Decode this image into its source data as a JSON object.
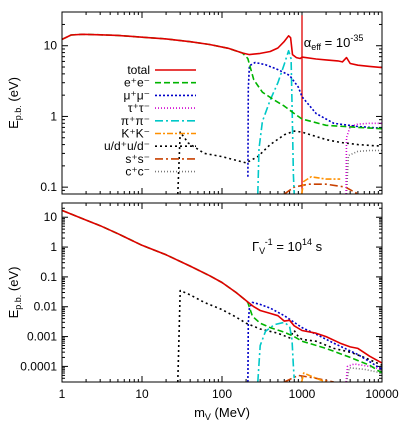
{
  "chart_data": [
    {
      "type": "line",
      "ylabel_main": "E",
      "ylabel_sub": "p.b.",
      "ylabel_unit": " (eV)",
      "xscale": "log",
      "yscale": "log",
      "xlim": [
        1,
        10000
      ],
      "ylim": [
        0.08,
        30
      ],
      "y_ticks": [
        0.1,
        1,
        10
      ],
      "y_tick_labels": [
        "0.1",
        "1",
        "10"
      ],
      "annotation": {
        "alpha": "α",
        "sub": "eff",
        "text": " = 10",
        "sup": "-35",
        "data_x": 1050,
        "data_y": 9.6
      },
      "marker_x": 1000,
      "legend_position": "left-center",
      "series": [
        {
          "name": "total",
          "color": "#e00000",
          "dash": "solid",
          "points": [
            [
              1,
              12.3
            ],
            [
              1.3,
              14.2
            ],
            [
              1.8,
              14.5
            ],
            [
              3,
              14.3
            ],
            [
              5,
              14
            ],
            [
              10,
              13.2
            ],
            [
              20,
              12.5
            ],
            [
              40,
              11.4
            ],
            [
              70,
              10.4
            ],
            [
              120,
              9.2
            ],
            [
              180,
              7.9
            ],
            [
              220,
              7.5
            ],
            [
              300,
              7.8
            ],
            [
              400,
              8.3
            ],
            [
              500,
              9.3
            ],
            [
              600,
              11.5
            ],
            [
              680,
              13.8
            ],
            [
              720,
              13
            ],
            [
              760,
              7.5
            ],
            [
              850,
              6.8
            ],
            [
              950,
              6.6
            ],
            [
              1000,
              6.9
            ],
            [
              1500,
              6.5
            ],
            [
              2000,
              6.3
            ],
            [
              2800,
              6.1
            ],
            [
              3200,
              5.9
            ],
            [
              3600,
              6.8
            ],
            [
              4000,
              5.6
            ],
            [
              5000,
              5.3
            ],
            [
              7000,
              5.1
            ],
            [
              10000,
              4.9
            ]
          ]
        },
        {
          "name": "e⁺e⁻",
          "color": "#00b400",
          "dash": "6,3",
          "points": [
            [
              1,
              12.3
            ],
            [
              1.3,
              14.2
            ],
            [
              1.8,
              14.5
            ],
            [
              3,
              14.3
            ],
            [
              5,
              14
            ],
            [
              10,
              13.2
            ],
            [
              20,
              12.5
            ],
            [
              40,
              11.4
            ],
            [
              70,
              10.4
            ],
            [
              120,
              9.2
            ],
            [
              180,
              7.9
            ],
            [
              210,
              6.6
            ],
            [
              250,
              3.3
            ],
            [
              320,
              2.2
            ],
            [
              450,
              1.7
            ],
            [
              600,
              1.4
            ],
            [
              800,
              1.1
            ],
            [
              1000,
              0.92
            ],
            [
              2000,
              0.75
            ],
            [
              5000,
              0.7
            ],
            [
              10000,
              0.67
            ]
          ]
        },
        {
          "name": "μ⁺μ⁻",
          "color": "#0000c8",
          "dash": "2,2",
          "points": [
            [
              211,
              0.14
            ],
            [
              213,
              2.5
            ],
            [
              220,
              5.2
            ],
            [
              260,
              5.8
            ],
            [
              350,
              5.4
            ],
            [
              500,
              4.6
            ],
            [
              700,
              3.8
            ],
            [
              900,
              2.6
            ],
            [
              1000,
              1.9
            ],
            [
              1500,
              1.1
            ],
            [
              2500,
              0.8
            ],
            [
              5000,
              0.72
            ],
            [
              10000,
              0.68
            ]
          ]
        },
        {
          "name": "τ⁺τ⁻",
          "color": "#d000d0",
          "dash": "1,2",
          "points": [
            [
              3560,
              0.08
            ],
            [
              3600,
              0.5
            ],
            [
              4000,
              0.72
            ],
            [
              5000,
              0.78
            ],
            [
              7000,
              0.8
            ],
            [
              10000,
              0.8
            ]
          ]
        },
        {
          "name": "π⁺π⁻",
          "color": "#00c8c8",
          "dash": "8,3,2,3",
          "points": [
            [
              280,
              0.08
            ],
            [
              290,
              0.35
            ],
            [
              320,
              0.85
            ],
            [
              400,
              1.7
            ],
            [
              500,
              3
            ],
            [
              600,
              5.5
            ],
            [
              680,
              8.5
            ],
            [
              730,
              6.5
            ],
            [
              760,
              0.7
            ],
            [
              780,
              0.15
            ],
            [
              800,
              0.08
            ]
          ]
        },
        {
          "name": "K⁺K⁻",
          "color": "#ff9000",
          "dash": "6,2,2,2",
          "points": [
            [
              990,
              0.08
            ],
            [
              1050,
              0.12
            ],
            [
              1300,
              0.14
            ],
            [
              2000,
              0.13
            ],
            [
              3000,
              0.13
            ]
          ]
        },
        {
          "name": "u/d⁺u/d⁻",
          "color": "#000000",
          "dash": "2,3",
          "points": [
            [
              28,
              0.08
            ],
            [
              30,
              0.6
            ],
            [
              38,
              0.42
            ],
            [
              60,
              0.3
            ],
            [
              100,
              0.27
            ],
            [
              150,
              0.24
            ],
            [
              200,
              0.22
            ],
            [
              280,
              0.27
            ],
            [
              400,
              0.4
            ],
            [
              600,
              0.55
            ],
            [
              800,
              0.62
            ],
            [
              1000,
              0.6
            ],
            [
              1500,
              0.52
            ],
            [
              2000,
              0.47
            ],
            [
              3000,
              0.43
            ],
            [
              5000,
              0.4
            ],
            [
              10000,
              0.38
            ]
          ]
        },
        {
          "name": "s⁺s⁻",
          "color": "#c84000",
          "dash": "8,3,2,3",
          "points": [
            [
              600,
              0.08
            ],
            [
              800,
              0.1
            ],
            [
              1200,
              0.11
            ],
            [
              2000,
              0.11
            ],
            [
              3500,
              0.1
            ],
            [
              5000,
              0.08
            ]
          ]
        },
        {
          "name": "c⁺c⁻",
          "color": "#787878",
          "dash": "1,2",
          "points": [
            [
              3600,
              0.08
            ],
            [
              3800,
              0.28
            ],
            [
              5000,
              0.32
            ],
            [
              7000,
              0.33
            ],
            [
              10000,
              0.33
            ]
          ]
        }
      ]
    },
    {
      "type": "line",
      "xlabel_main": "m",
      "xlabel_sub": "V",
      "xlabel_unit": " (MeV)",
      "ylabel_main": "E",
      "ylabel_sub": "p.b.",
      "ylabel_unit": " (eV)",
      "xscale": "log",
      "yscale": "log",
      "xlim": [
        1,
        10000
      ],
      "ylim": [
        3e-05,
        30
      ],
      "x_ticks": [
        1,
        10,
        100,
        1000,
        10000
      ],
      "x_tick_labels": [
        "1",
        "10",
        "100",
        "1000",
        "10000"
      ],
      "y_ticks": [
        0.0001,
        0.001,
        0.01,
        0.1,
        1,
        10
      ],
      "y_tick_labels": [
        "0.0001",
        "0.001",
        "0.01",
        "0.1",
        "1",
        "10"
      ],
      "annotation": {
        "gamma": "Γ",
        "sub": "V",
        "sup1": "-1",
        "text": " = 10",
        "sup2": "14",
        "unit": " s"
      },
      "series": [
        {
          "name": "total",
          "color": "#e00000",
          "dash": "solid",
          "points": [
            [
              1,
              17
            ],
            [
              2,
              8
            ],
            [
              3,
              5.2
            ],
            [
              5,
              2.8
            ],
            [
              10,
              1.15
            ],
            [
              20,
              0.55
            ],
            [
              40,
              0.23
            ],
            [
              70,
              0.11
            ],
            [
              100,
              0.065
            ],
            [
              150,
              0.03
            ],
            [
              200,
              0.016
            ],
            [
              250,
              0.01
            ],
            [
              300,
              0.0075
            ],
            [
              400,
              0.006
            ],
            [
              500,
              0.005
            ],
            [
              600,
              0.0033
            ],
            [
              700,
              0.0035
            ],
            [
              800,
              0.0023
            ],
            [
              1000,
              0.0016
            ],
            [
              1500,
              0.0013
            ],
            [
              2000,
              0.001
            ],
            [
              3000,
              0.0006
            ],
            [
              4000,
              0.00045
            ],
            [
              5000,
              0.0004
            ],
            [
              7000,
              0.00022
            ],
            [
              10000,
              0.00013
            ]
          ]
        },
        {
          "name": "e⁺e⁻",
          "color": "#00b400",
          "dash": "6,3",
          "points": [
            [
              1,
              17
            ],
            [
              2,
              8
            ],
            [
              3,
              5.2
            ],
            [
              5,
              2.8
            ],
            [
              10,
              1.15
            ],
            [
              20,
              0.55
            ],
            [
              40,
              0.23
            ],
            [
              70,
              0.11
            ],
            [
              100,
              0.065
            ],
            [
              150,
              0.03
            ],
            [
              200,
              0.016
            ],
            [
              210,
              0.014
            ],
            [
              240,
              0.0048
            ],
            [
              300,
              0.0028
            ],
            [
              400,
              0.002
            ],
            [
              600,
              0.0014
            ],
            [
              800,
              0.001
            ],
            [
              1000,
              0.0007
            ],
            [
              2000,
              0.0004
            ],
            [
              4000,
              0.0002
            ],
            [
              7000,
              0.00011
            ],
            [
              10000,
              6e-05
            ]
          ]
        },
        {
          "name": "μ⁺μ⁻",
          "color": "#0000c8",
          "dash": "2,2",
          "points": [
            [
              211,
              3e-05
            ],
            [
              213,
              0.003
            ],
            [
              220,
              0.009
            ],
            [
              240,
              0.014
            ],
            [
              300,
              0.012
            ],
            [
              400,
              0.009
            ],
            [
              600,
              0.005
            ],
            [
              800,
              0.003
            ],
            [
              1000,
              0.002
            ],
            [
              1500,
              0.0012
            ],
            [
              2500,
              0.0006
            ],
            [
              5000,
              0.00025
            ],
            [
              10000,
              8e-05
            ]
          ]
        },
        {
          "name": "π⁺π⁻",
          "color": "#00c8c8",
          "dash": "8,3,2,3",
          "points": [
            [
              280,
              3e-05
            ],
            [
              300,
              0.0005
            ],
            [
              350,
              0.0015
            ],
            [
              450,
              0.0025
            ],
            [
              600,
              0.003
            ],
            [
              700,
              0.0022
            ],
            [
              750,
              0.0008
            ],
            [
              780,
              0.0001
            ],
            [
              800,
              4e-05
            ]
          ]
        },
        {
          "name": "u/d⁺u/d⁻",
          "color": "#000000",
          "dash": "2,3",
          "points": [
            [
              28,
              3e-05
            ],
            [
              30,
              0.035
            ],
            [
              40,
              0.025
            ],
            [
              60,
              0.014
            ],
            [
              100,
              0.008
            ],
            [
              150,
              0.0045
            ],
            [
              200,
              0.0028
            ],
            [
              300,
              0.0018
            ],
            [
              500,
              0.0013
            ],
            [
              700,
              0.0009
            ],
            [
              800,
              0.0016
            ],
            [
              900,
              0.001
            ],
            [
              1000,
              0.0008
            ],
            [
              1500,
              0.0007
            ],
            [
              2500,
              0.0004
            ],
            [
              4000,
              0.0003
            ],
            [
              6000,
              0.0002
            ],
            [
              10000,
              0.00011
            ]
          ]
        },
        {
          "name": "K⁺K⁻",
          "color": "#ff9000",
          "dash": "6,2,2,2",
          "points": [
            [
              990,
              3e-05
            ],
            [
              1050,
              6e-05
            ],
            [
              1500,
              4e-05
            ],
            [
              2000,
              3e-05
            ]
          ]
        },
        {
          "name": "τ⁺τ⁻",
          "color": "#d000d0",
          "dash": "1,2",
          "points": [
            [
              3560,
              3e-05
            ],
            [
              3700,
              0.0001
            ],
            [
              4500,
              0.00012
            ],
            [
              7000,
              0.0001
            ],
            [
              10000,
              8e-05
            ]
          ]
        },
        {
          "name": "c⁺c⁻",
          "color": "#787878",
          "dash": "1,2",
          "points": [
            [
              3600,
              3e-05
            ],
            [
              3900,
              9e-05
            ],
            [
              6000,
              8e-05
            ],
            [
              10000,
              6e-05
            ]
          ]
        },
        {
          "name": "s⁺s⁻",
          "color": "#c84000",
          "dash": "8,3,2,3",
          "points": [
            [
              600,
              3e-05
            ],
            [
              900,
              5e-05
            ],
            [
              1500,
              4e-05
            ],
            [
              2500,
              3e-05
            ]
          ]
        }
      ]
    }
  ]
}
